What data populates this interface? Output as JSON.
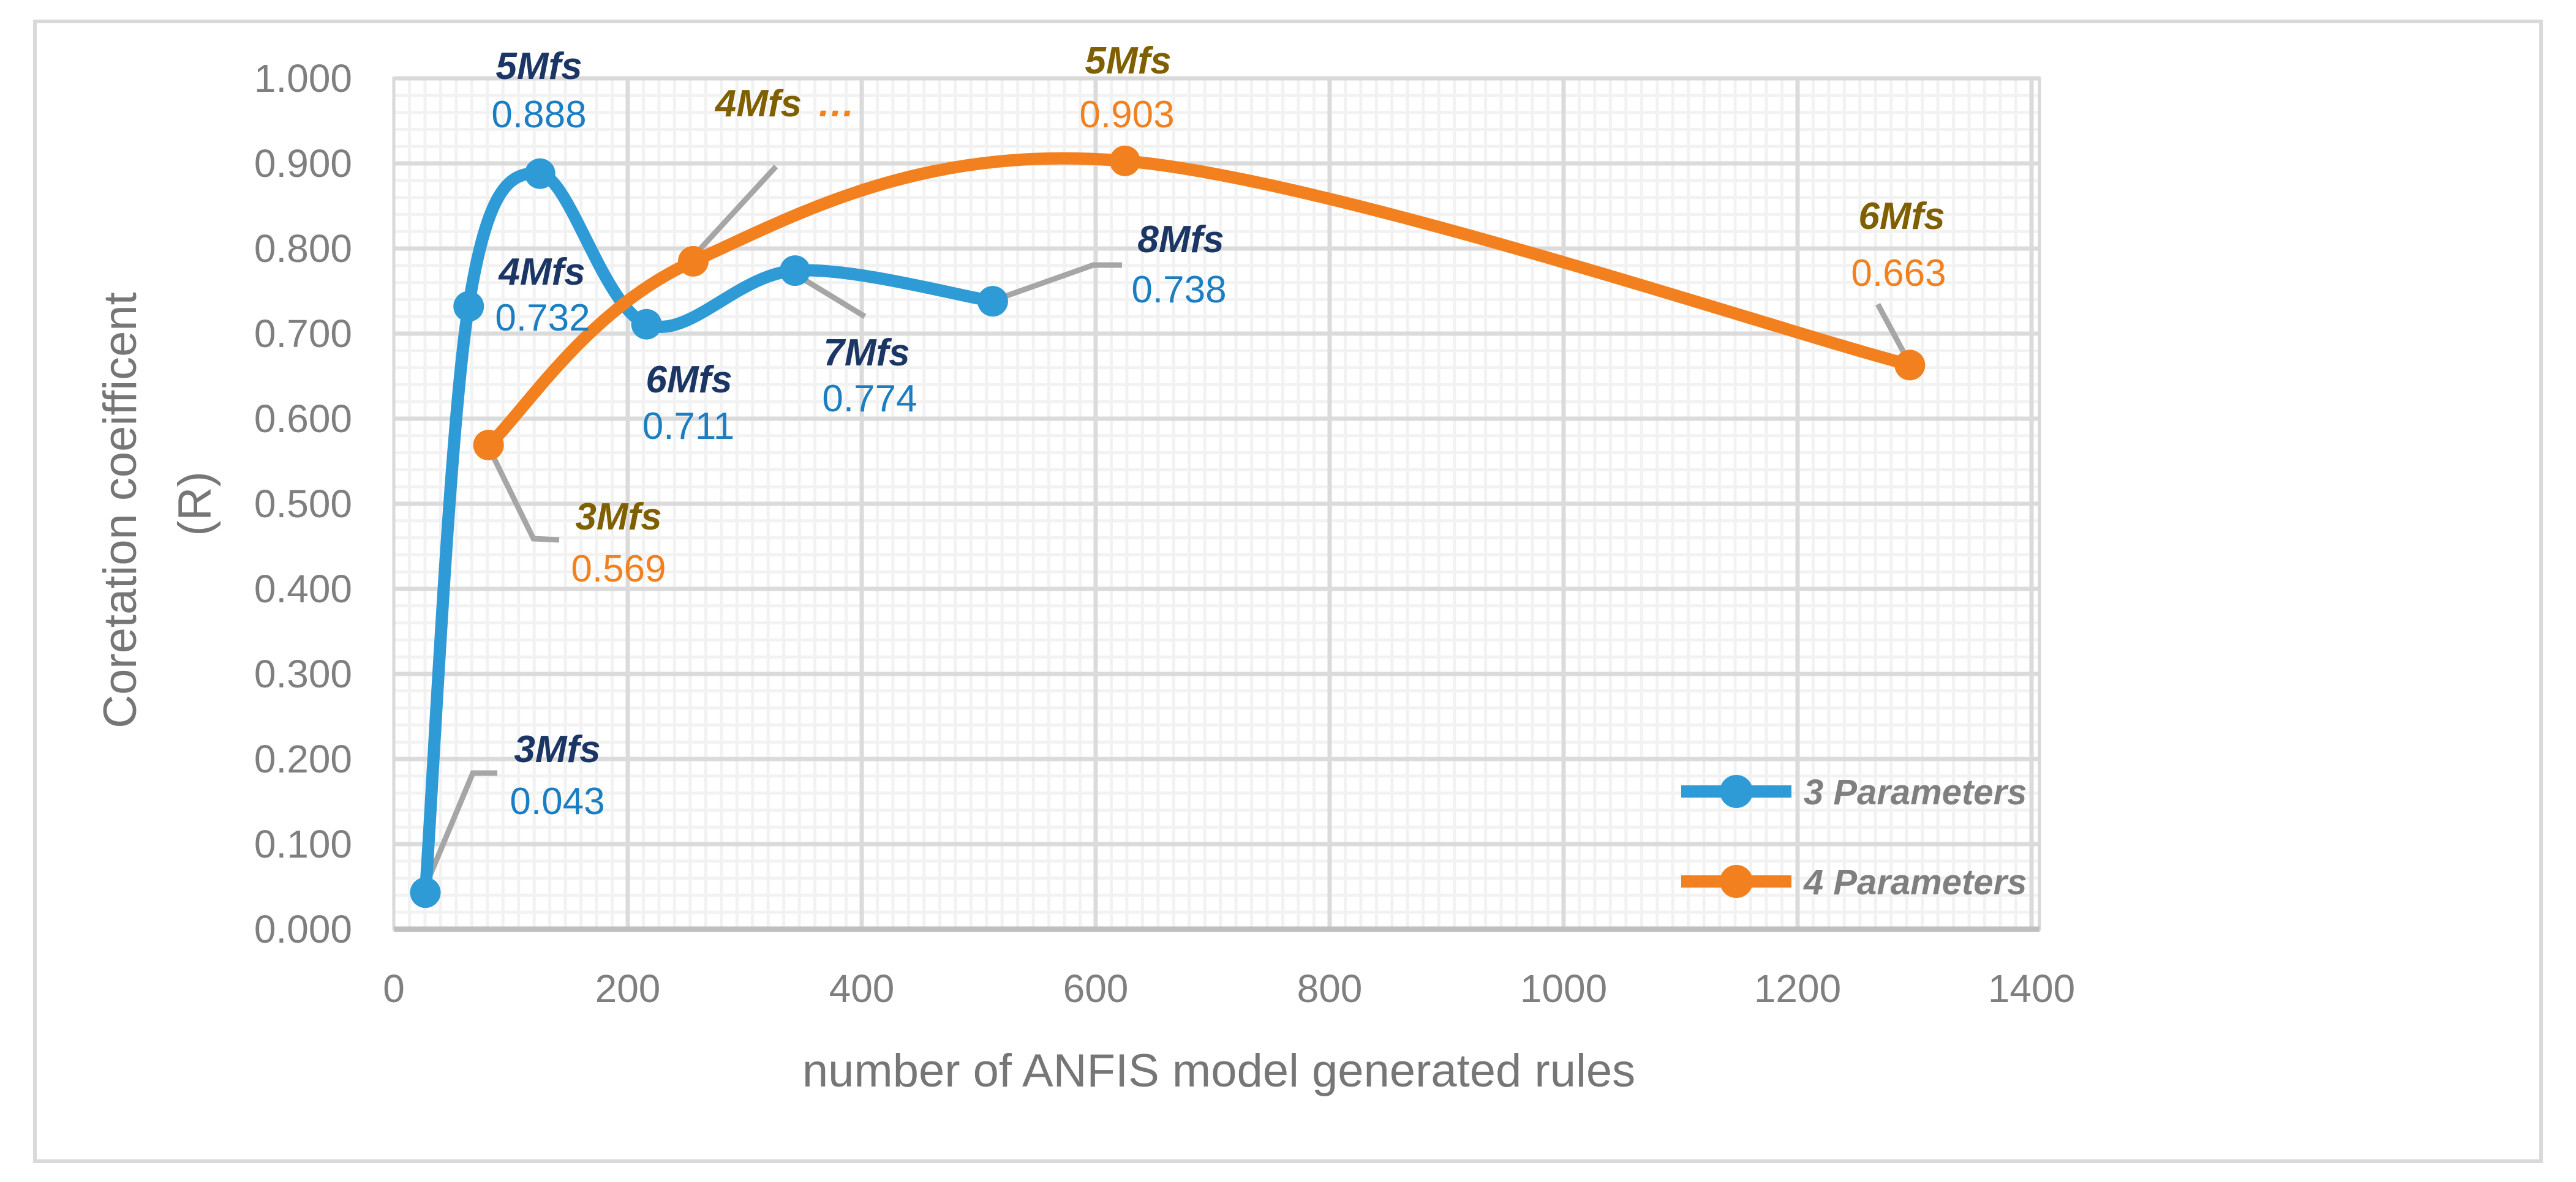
{
  "chart_data": {
    "type": "line",
    "smooth": true,
    "marker": "circle",
    "title": "",
    "xlabel": "number of ANFIS model generated rules",
    "ylabel": "Coretation coeifficent (R)",
    "ylabel_line1": "Coretation coeifficent",
    "ylabel_line2": "(R)",
    "xlim": [
      0,
      1400
    ],
    "ylim": [
      0.0,
      1.0
    ],
    "x_ticks": [
      0,
      200,
      400,
      600,
      800,
      1000,
      1200,
      1400
    ],
    "y_ticks": [
      "0.000",
      "0.100",
      "0.200",
      "0.300",
      "0.400",
      "0.500",
      "0.600",
      "0.700",
      "0.800",
      "0.900",
      "1.000"
    ],
    "grid": {
      "major": true,
      "minor": true,
      "minor_x_step": 13.333,
      "minor_y_step": 0.02
    },
    "legend_position": "inside-bottom-right",
    "series": [
      {
        "name": "3 Parameters",
        "color": "#2E9BD6",
        "label_color": "#1B3664",
        "value_color": "#1B7EC2",
        "points": [
          {
            "label": "3Mfs",
            "x": 27,
            "y": 0.043,
            "value_label": "0.043"
          },
          {
            "label": "4Mfs",
            "x": 64,
            "y": 0.732,
            "value_label": "0.732"
          },
          {
            "label": "5Mfs",
            "x": 125,
            "y": 0.888,
            "value_label": "0.888"
          },
          {
            "label": "6Mfs",
            "x": 216,
            "y": 0.711,
            "value_label": "0.711"
          },
          {
            "label": "7Mfs",
            "x": 343,
            "y": 0.774,
            "value_label": "0.774"
          },
          {
            "label": "8Mfs",
            "x": 512,
            "y": 0.738,
            "value_label": "0.738"
          }
        ]
      },
      {
        "name": "4 Parameters",
        "color": "#F2801E",
        "label_color": "#7F6000",
        "value_color": "#F2801E",
        "points": [
          {
            "label": "3Mfs",
            "x": 81,
            "y": 0.569,
            "value_label": "0.569"
          },
          {
            "label": "4Mfs",
            "x": 256,
            "y": 0.785,
            "value_label": "",
            "ellipsis": "…"
          },
          {
            "label": "5Mfs",
            "x": 625,
            "y": 0.903,
            "value_label": "0.903"
          },
          {
            "label": "6Mfs",
            "x": 1296,
            "y": 0.663,
            "value_label": "0.663"
          }
        ]
      }
    ],
    "colors": {
      "tick_text": "#7F7F7F",
      "axis_title_text": "#767676",
      "legend_text": "#7F7F7F",
      "grid_minor": "#F2F2F2",
      "grid_major": "#DBDBDB",
      "axis_line": "#BFBFBF",
      "plot_border": "#D9D9D9",
      "leader_line": "#A6A6A6",
      "chart_border": "#D9D9D9"
    }
  }
}
